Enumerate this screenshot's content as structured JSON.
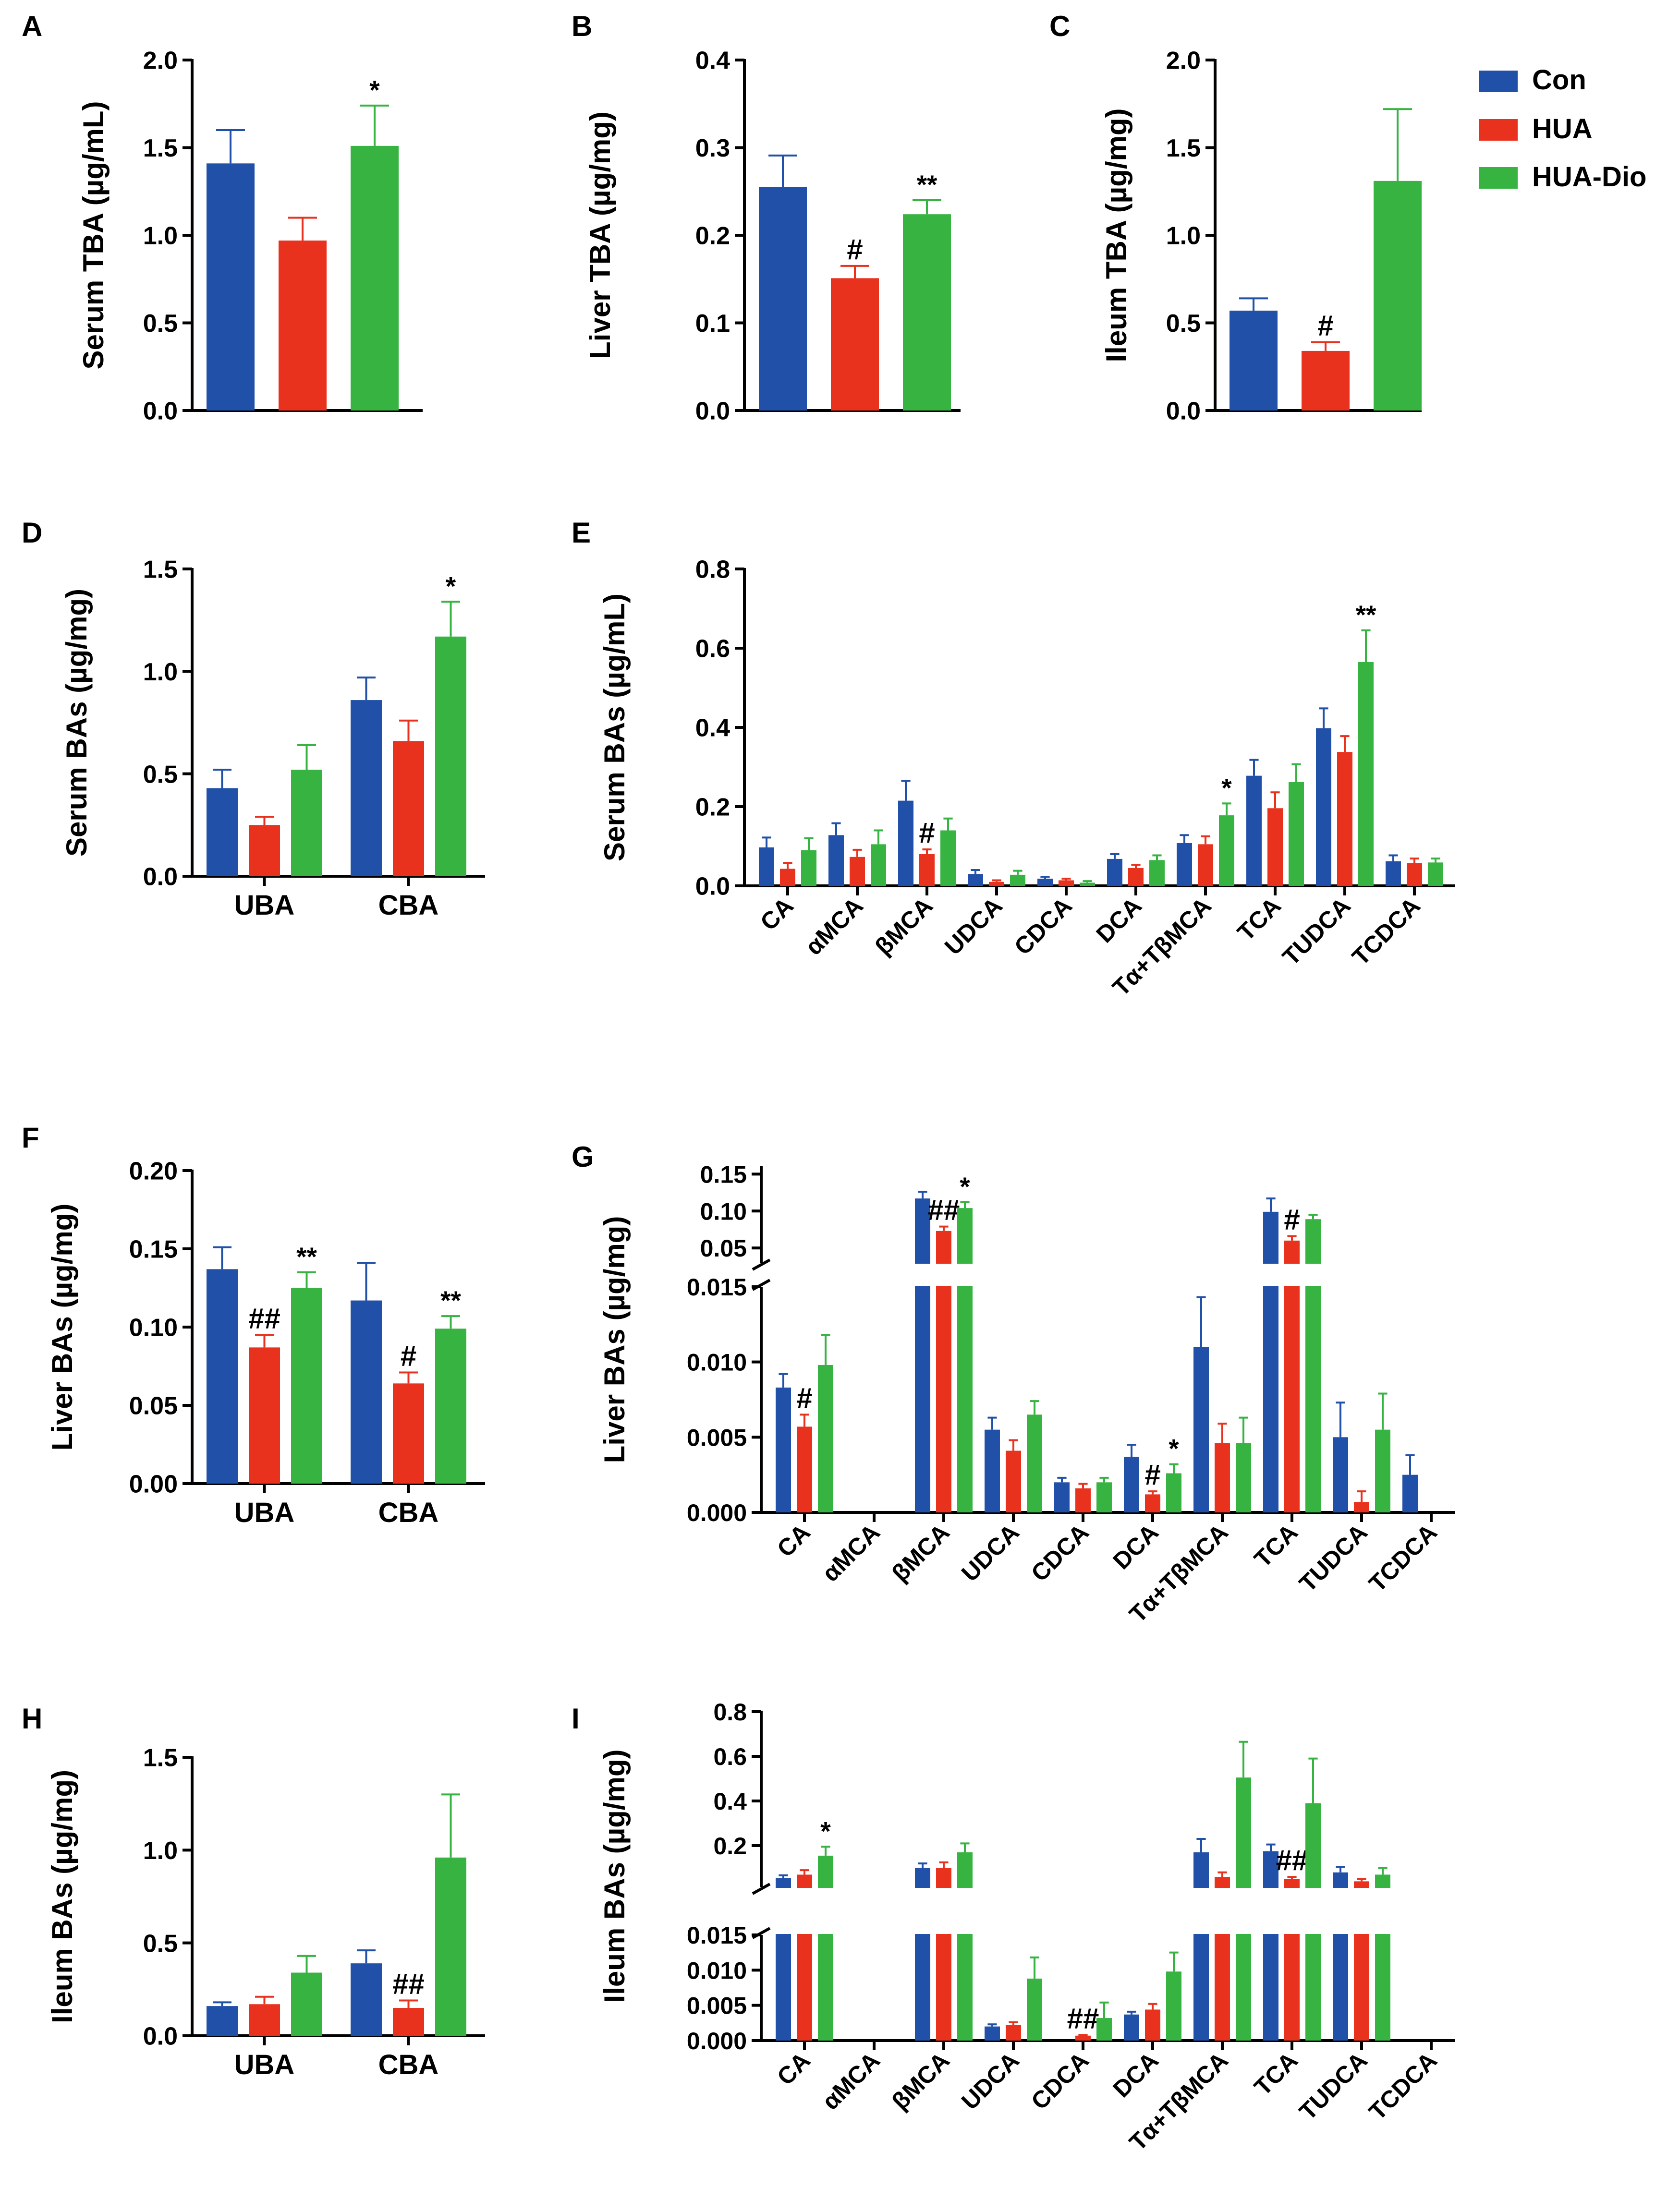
{
  "chart_data": [
    {
      "id": "A",
      "type": "bar",
      "panel_label": "A",
      "ylabel": "Serum TBA (µg/mL)",
      "ylim": [
        0,
        2.0
      ],
      "yticks": [
        "0.0",
        "0.5",
        "1.0",
        "1.5",
        "2.0"
      ],
      "categories": [
        ""
      ],
      "series": [
        {
          "name": "Con",
          "values": [
            1.41
          ],
          "errors": [
            0.19
          ],
          "marks": [
            ""
          ]
        },
        {
          "name": "HUA",
          "values": [
            0.97
          ],
          "errors": [
            0.13
          ],
          "marks": [
            ""
          ]
        },
        {
          "name": "HUA-Dio",
          "values": [
            1.51
          ],
          "errors": [
            0.23
          ],
          "marks": [
            "*"
          ]
        }
      ]
    },
    {
      "id": "B",
      "type": "bar",
      "panel_label": "B",
      "ylabel": "Liver TBA (µg/mg)",
      "ylim": [
        0,
        0.4
      ],
      "yticks": [
        "0.0",
        "0.1",
        "0.2",
        "0.3",
        "0.4"
      ],
      "categories": [
        ""
      ],
      "series": [
        {
          "name": "Con",
          "values": [
            0.255
          ],
          "errors": [
            0.036
          ],
          "marks": [
            ""
          ]
        },
        {
          "name": "HUA",
          "values": [
            0.151
          ],
          "errors": [
            0.014
          ],
          "marks": [
            "#"
          ]
        },
        {
          "name": "HUA-Dio",
          "values": [
            0.224
          ],
          "errors": [
            0.016
          ],
          "marks": [
            "**"
          ]
        }
      ]
    },
    {
      "id": "C",
      "type": "bar",
      "panel_label": "C",
      "ylabel": "Ileum TBA (µg/mg)",
      "ylim": [
        0,
        2.0
      ],
      "yticks": [
        "0.0",
        "0.5",
        "1.0",
        "1.5",
        "2.0"
      ],
      "categories": [
        ""
      ],
      "series": [
        {
          "name": "Con",
          "values": [
            0.57
          ],
          "errors": [
            0.07
          ],
          "marks": [
            ""
          ]
        },
        {
          "name": "HUA",
          "values": [
            0.34
          ],
          "errors": [
            0.05
          ],
          "marks": [
            "#"
          ]
        },
        {
          "name": "HUA-Dio",
          "values": [
            1.31
          ],
          "errors": [
            0.41
          ],
          "marks": [
            ""
          ]
        }
      ]
    },
    {
      "id": "D",
      "type": "bar",
      "panel_label": "D",
      "ylabel": "Serum BAs (µg/mg)",
      "ylim": [
        0,
        1.5
      ],
      "yticks": [
        "0.0",
        "0.5",
        "1.0",
        "1.5"
      ],
      "categories": [
        "UBA",
        "CBA"
      ],
      "series": [
        {
          "name": "Con",
          "values": [
            0.43,
            0.86
          ],
          "errors": [
            0.09,
            0.11
          ],
          "marks": [
            "",
            ""
          ]
        },
        {
          "name": "HUA",
          "values": [
            0.25,
            0.66
          ],
          "errors": [
            0.04,
            0.1
          ],
          "marks": [
            "",
            ""
          ]
        },
        {
          "name": "HUA-Dio",
          "values": [
            0.52,
            1.17
          ],
          "errors": [
            0.12,
            0.17
          ],
          "marks": [
            "",
            "*"
          ]
        }
      ]
    },
    {
      "id": "E",
      "type": "bar",
      "panel_label": "E",
      "ylabel": "Serum BAs (µg/mL)",
      "ylim": [
        0,
        0.8
      ],
      "yticks": [
        "0.0",
        "0.2",
        "0.4",
        "0.6",
        "0.8"
      ],
      "categories": [
        "CA",
        "αMCA",
        "βMCA",
        "UDCA",
        "CDCA",
        "DCA",
        "Tα+TβMCA",
        "TCA",
        "TUDCA",
        "TCDCA"
      ],
      "series": [
        {
          "name": "Con",
          "values": [
            0.097,
            0.128,
            0.215,
            0.03,
            0.018,
            0.068,
            0.108,
            0.278,
            0.398,
            0.062
          ],
          "errors": [
            0.025,
            0.03,
            0.05,
            0.01,
            0.005,
            0.012,
            0.02,
            0.04,
            0.05,
            0.015
          ],
          "marks": [
            "",
            "",
            "",
            "",
            "",
            "",
            "",
            "",
            "",
            ""
          ]
        },
        {
          "name": "HUA",
          "values": [
            0.043,
            0.073,
            0.08,
            0.01,
            0.014,
            0.045,
            0.105,
            0.196,
            0.338,
            0.057
          ],
          "errors": [
            0.015,
            0.018,
            0.012,
            0.004,
            0.004,
            0.008,
            0.02,
            0.04,
            0.04,
            0.012
          ],
          "marks": [
            "",
            "",
            "#",
            "",
            "",
            "",
            "",
            "",
            "",
            ""
          ]
        },
        {
          "name": "HUA-Dio",
          "values": [
            0.09,
            0.105,
            0.14,
            0.028,
            0.008,
            0.065,
            0.178,
            0.262,
            0.565,
            0.059
          ],
          "errors": [
            0.03,
            0.035,
            0.03,
            0.01,
            0.004,
            0.012,
            0.03,
            0.045,
            0.08,
            0.01
          ],
          "marks": [
            "",
            "",
            "",
            "",
            "",
            "",
            "*",
            "",
            "**",
            ""
          ]
        }
      ]
    },
    {
      "id": "F",
      "type": "bar",
      "panel_label": "F",
      "ylabel": "Liver BAs (µg/mg)",
      "ylim": [
        0,
        0.2
      ],
      "yticks": [
        "0.00",
        "0.05",
        "0.10",
        "0.15",
        "0.20"
      ],
      "categories": [
        "UBA",
        "CBA"
      ],
      "series": [
        {
          "name": "Con",
          "values": [
            0.137,
            0.117
          ],
          "errors": [
            0.014,
            0.024
          ],
          "marks": [
            "",
            ""
          ]
        },
        {
          "name": "HUA",
          "values": [
            0.087,
            0.064
          ],
          "errors": [
            0.008,
            0.007
          ],
          "marks": [
            "##",
            "#"
          ]
        },
        {
          "name": "HUA-Dio",
          "values": [
            0.125,
            0.099
          ],
          "errors": [
            0.01,
            0.008
          ],
          "marks": [
            "**",
            "**"
          ]
        }
      ]
    },
    {
      "id": "G",
      "type": "bar",
      "panel_label": "G",
      "ylabel": "Liver BAs (µg/mg)",
      "ylim_lower": [
        0,
        0.015
      ],
      "ylim_upper": [
        0.03,
        0.16
      ],
      "yticks_lower": [
        "0.000",
        "0.005",
        "0.010",
        "0.015"
      ],
      "yticks_upper": [
        "0.05",
        "0.10",
        "0.15"
      ],
      "categories": [
        "CA",
        "αMCA",
        "βMCA",
        "UDCA",
        "CDCA",
        "DCA",
        "Tα+TβMCA",
        "TCA",
        "TUDCA",
        "TCDCA"
      ],
      "series": [
        {
          "name": "Con",
          "values": [
            0.0083,
            0,
            0.117,
            0.0055,
            0.002,
            0.0037,
            0.011,
            0.099,
            0.005,
            0.0025
          ],
          "errors": [
            0.0009,
            0,
            0.009,
            0.0008,
            0.0003,
            0.0008,
            0.0033,
            0.018,
            0.0023,
            0.0013
          ],
          "marks": [
            "",
            "",
            "",
            "",
            "",
            "",
            "",
            "",
            "",
            ""
          ]
        },
        {
          "name": "HUA",
          "values": [
            0.0057,
            0,
            0.073,
            0.0041,
            0.0016,
            0.0012,
            0.0046,
            0.06,
            0.0007,
            0
          ],
          "errors": [
            0.0008,
            0,
            0.006,
            0.0007,
            0.0003,
            0.0002,
            0.0013,
            0.006,
            0.0007,
            0
          ],
          "marks": [
            "#",
            "",
            "##",
            "",
            "",
            "#",
            "",
            "#",
            "",
            ""
          ]
        },
        {
          "name": "HUA-Dio",
          "values": [
            0.0098,
            0,
            0.104,
            0.0065,
            0.002,
            0.0026,
            0.0046,
            0.089,
            0.0055,
            0
          ],
          "errors": [
            0.002,
            0,
            0.008,
            0.0009,
            0.0003,
            0.0006,
            0.0017,
            0.006,
            0.0024,
            0
          ],
          "marks": [
            "",
            "",
            "*",
            "",
            "",
            "*",
            "",
            "",
            "",
            ""
          ]
        }
      ]
    },
    {
      "id": "H",
      "type": "bar",
      "panel_label": "H",
      "ylabel": "Ileum BAs (µg/mg)",
      "ylim": [
        0,
        1.5
      ],
      "yticks": [
        "0.0",
        "0.5",
        "1.0",
        "1.5"
      ],
      "categories": [
        "UBA",
        "CBA"
      ],
      "series": [
        {
          "name": "Con",
          "values": [
            0.16,
            0.39
          ],
          "errors": [
            0.02,
            0.07
          ],
          "marks": [
            "",
            ""
          ]
        },
        {
          "name": "HUA",
          "values": [
            0.17,
            0.15
          ],
          "errors": [
            0.04,
            0.04
          ],
          "marks": [
            "",
            "##"
          ]
        },
        {
          "name": "HUA-Dio",
          "values": [
            0.34,
            0.96
          ],
          "errors": [
            0.09,
            0.34
          ],
          "marks": [
            "",
            ""
          ]
        }
      ]
    },
    {
      "id": "I",
      "type": "bar",
      "panel_label": "I",
      "ylabel": "Ileum BAs (µg/mg)",
      "ylim_lower": [
        0,
        0.015
      ],
      "ylim_upper": [
        0.015,
        0.8
      ],
      "yticks_lower": [
        "0.000",
        "0.005",
        "0.010",
        "0.015"
      ],
      "yticks_upper": [
        "0.2",
        "0.4",
        "0.6",
        "0.8"
      ],
      "categories": [
        "CA",
        "αMCA",
        "βMCA",
        "UDCA",
        "CDCA",
        "DCA",
        "Tα+TβMCA",
        "TCA",
        "TUDCA",
        "TCDCA"
      ],
      "series": [
        {
          "name": "Con",
          "values": [
            0.055,
            0,
            0.1,
            0.002,
            0,
            0.0037,
            0.17,
            0.175,
            0.08,
            0
          ],
          "errors": [
            0.012,
            0,
            0.02,
            0.0003,
            0,
            0.0004,
            0.06,
            0.03,
            0.025,
            0
          ],
          "marks": [
            "",
            "",
            "",
            "",
            "",
            "",
            "",
            "",
            "",
            ""
          ]
        },
        {
          "name": "HUA",
          "values": [
            0.07,
            0,
            0.1,
            0.0022,
            0.0007,
            0.0044,
            0.06,
            0.05,
            0.04,
            0
          ],
          "errors": [
            0.02,
            0,
            0.025,
            0.0004,
            0.0001,
            0.0008,
            0.02,
            0.01,
            0.01,
            0
          ],
          "marks": [
            "",
            "",
            "",
            "",
            "##",
            "",
            "",
            "##",
            "",
            ""
          ]
        },
        {
          "name": "HUA-Dio",
          "values": [
            0.155,
            0,
            0.17,
            0.0088,
            0.0032,
            0.0098,
            0.505,
            0.39,
            0.07,
            0
          ],
          "errors": [
            0.04,
            0,
            0.04,
            0.003,
            0.0022,
            0.0027,
            0.16,
            0.2,
            0.03,
            0
          ],
          "marks": [
            "*",
            "",
            "",
            "",
            "",
            "",
            "",
            "",
            "",
            ""
          ]
        }
      ]
    }
  ],
  "legend": {
    "items": [
      {
        "label": "Con",
        "color": "#2150a8"
      },
      {
        "label": "HUA",
        "color": "#e8321e"
      },
      {
        "label": "HUA-Dio",
        "color": "#36b341"
      }
    ]
  },
  "colors": {
    "Con": "#2150a8",
    "HUA": "#e8321e",
    "HUA-Dio": "#36b341"
  }
}
